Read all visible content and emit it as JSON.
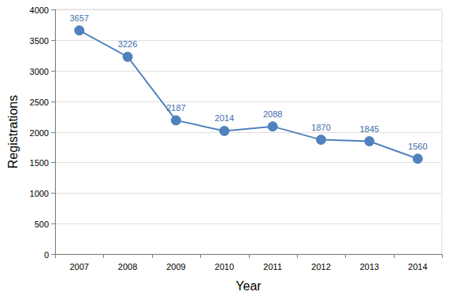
{
  "chart_data": {
    "type": "line",
    "x_label": "Year",
    "y_label": "Registrations",
    "categories": [
      "2007",
      "2008",
      "2009",
      "2010",
      "2011",
      "2012",
      "2013",
      "2014"
    ],
    "values": [
      3657,
      3226,
      2187,
      2014,
      2088,
      1870,
      1845,
      1560
    ],
    "color": "#4f81bd",
    "marker": "circle",
    "ylim": [
      0,
      4000
    ],
    "yticks": [
      0,
      500,
      1000,
      1500,
      2000,
      2500,
      3000,
      3500,
      4000
    ],
    "grid": true,
    "data_labels": true
  }
}
